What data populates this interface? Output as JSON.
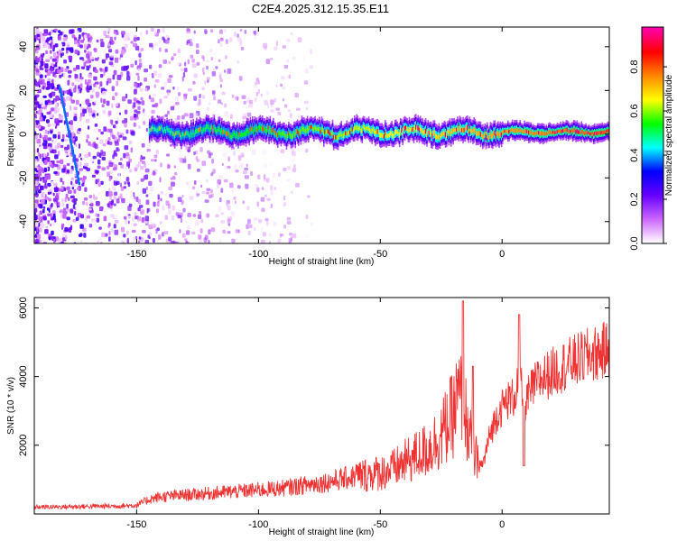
{
  "figure_title": "C2E4.2025.312.15.35.E11",
  "chart_data": [
    {
      "type": "heatmap",
      "title": "C2E4.2025.312.15.35.E11",
      "xlabel": "Height of straight line (km)",
      "ylabel": "Frequency (Hz)",
      "xlim": [
        -192,
        44
      ],
      "ylim": [
        -50,
        49
      ],
      "xticks": [
        -150,
        -100,
        -50,
        0
      ],
      "yticks": [
        40,
        20,
        0,
        -20,
        -40
      ],
      "xtick_labels": [
        "-150",
        "-100",
        "-50",
        "0"
      ],
      "ytick_labels": [
        "40",
        "20",
        "0",
        "-20",
        "-40"
      ],
      "colorbar": {
        "label": "Normalized spectral amplitude",
        "range": [
          0,
          0.98
        ],
        "ticks": [
          0.0,
          0.2,
          0.4,
          0.6,
          0.8
        ],
        "tick_labels": [
          "0.0",
          "0.2",
          "0.4",
          "0.6",
          "0.8"
        ],
        "colormap": [
          "#ffffff",
          "#cc66ff",
          "#6600ff",
          "#0000ff",
          "#00ffff",
          "#00ff00",
          "#ffff00",
          "#ff8800",
          "#ff0000",
          "#ff00aa"
        ]
      },
      "signal_band": {
        "x_start": -145,
        "x_end": 44,
        "center_frequency": 1,
        "peak_amplitude": 0.95
      },
      "noise_region": {
        "x_start": -192,
        "x_end": -78,
        "frequency_range": [
          -50,
          49
        ]
      }
    },
    {
      "type": "line",
      "xlabel": "Height of straight line (km)",
      "ylabel": "SNR (10 * v/v)",
      "xlim": [
        -192,
        44
      ],
      "ylim": [
        0,
        6300
      ],
      "xticks": [
        -150,
        -100,
        -50,
        0
      ],
      "yticks": [
        2000,
        4000,
        6000
      ],
      "xtick_labels": [
        "-150",
        "-100",
        "-50",
        "0"
      ],
      "ytick_labels": [
        "2000",
        "4000",
        "6000"
      ],
      "series": [
        {
          "name": "SNR",
          "color": "#ee3333",
          "x": [
            -192,
            -180,
            -170,
            -160,
            -150,
            -145,
            -140,
            -130,
            -120,
            -110,
            -100,
            -90,
            -80,
            -70,
            -60,
            -50,
            -45,
            -40,
            -35,
            -30,
            -25,
            -20,
            -18,
            -16,
            -14,
            -12,
            -10,
            -8,
            -5,
            -2,
            0,
            2,
            5,
            7,
            9,
            12,
            15,
            20,
            25,
            30,
            35,
            40,
            44
          ],
          "values": [
            200,
            210,
            220,
            230,
            250,
            420,
            500,
            550,
            600,
            650,
            700,
            750,
            850,
            950,
            1100,
            1200,
            1300,
            1500,
            1700,
            1900,
            2300,
            2900,
            3400,
            3200,
            2500,
            1800,
            1500,
            1400,
            2300,
            2900,
            3100,
            3300,
            3400,
            4000,
            3200,
            3600,
            3900,
            4100,
            4300,
            4450,
            4600,
            4700,
            4800
          ],
          "spikes": [
            {
              "x": -16,
              "value": 6200
            },
            {
              "x": -12,
              "value": 4300
            },
            {
              "x": 7,
              "value": 5800
            },
            {
              "x": 9,
              "value": 1400
            }
          ]
        }
      ]
    }
  ]
}
